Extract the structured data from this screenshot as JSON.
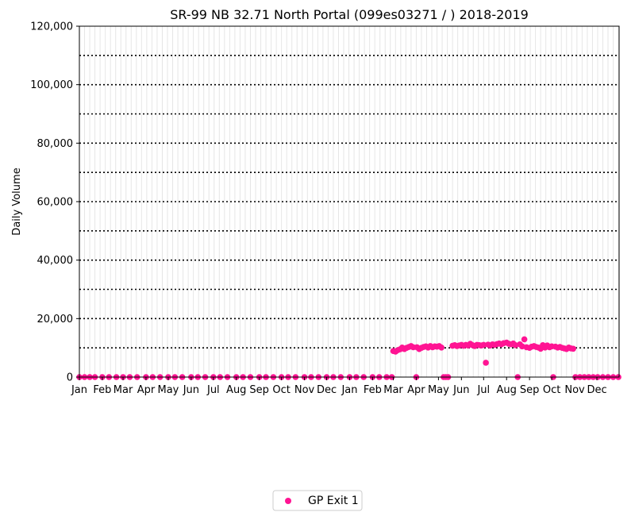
{
  "chart_data": {
    "type": "scatter",
    "title": "SR-99  NB  32.71  North Portal (099es03271 / ) 2018-2019",
    "xlabel": "",
    "ylabel": "Daily Volume",
    "x_range": [
      "2018-01-01",
      "2019-12-31"
    ],
    "ylim": [
      0,
      120000
    ],
    "y_ticks": [
      0,
      20000,
      40000,
      60000,
      80000,
      100000,
      120000
    ],
    "y_tick_labels": [
      "0",
      "20,000",
      "40,000",
      "60,000",
      "80,000",
      "100,000",
      "120,000"
    ],
    "x_ticks": [
      {
        "date": "2018-01-01",
        "label": "Jan"
      },
      {
        "date": "2018-02-01",
        "label": "Feb"
      },
      {
        "date": "2018-03-01",
        "label": "Mar"
      },
      {
        "date": "2018-04-01",
        "label": "Apr"
      },
      {
        "date": "2018-05-01",
        "label": "May"
      },
      {
        "date": "2018-06-01",
        "label": "Jun"
      },
      {
        "date": "2018-07-01",
        "label": "Jul"
      },
      {
        "date": "2018-08-01",
        "label": "Aug"
      },
      {
        "date": "2018-09-01",
        "label": "Sep"
      },
      {
        "date": "2018-10-01",
        "label": "Oct"
      },
      {
        "date": "2018-11-01",
        "label": "Nov"
      },
      {
        "date": "2018-12-01",
        "label": "Dec"
      },
      {
        "date": "2019-01-01",
        "label": "Jan"
      },
      {
        "date": "2019-02-01",
        "label": "Feb"
      },
      {
        "date": "2019-03-01",
        "label": "Mar"
      },
      {
        "date": "2019-04-01",
        "label": "Apr"
      },
      {
        "date": "2019-05-01",
        "label": "May"
      },
      {
        "date": "2019-06-01",
        "label": "Jun"
      },
      {
        "date": "2019-07-01",
        "label": "Jul"
      },
      {
        "date": "2019-08-01",
        "label": "Aug"
      },
      {
        "date": "2019-09-01",
        "label": "Sep"
      },
      {
        "date": "2019-10-01",
        "label": "Oct"
      },
      {
        "date": "2019-11-01",
        "label": "Nov"
      },
      {
        "date": "2019-12-01",
        "label": "Dec"
      }
    ],
    "grid": {
      "y_major": "dotted",
      "x_weekly": "light-gray"
    },
    "legend": {
      "position": "bottom-center",
      "entries": [
        "GP Exit 1"
      ]
    },
    "series": [
      {
        "name": "GP Exit 1",
        "color": "#ff1493",
        "points": [
          {
            "x": "2018-01-01",
            "y": 0
          },
          {
            "x": "2018-01-08",
            "y": 0
          },
          {
            "x": "2018-01-15",
            "y": 0
          },
          {
            "x": "2018-01-22",
            "y": 0
          },
          {
            "x": "2018-02-01",
            "y": 0
          },
          {
            "x": "2018-02-10",
            "y": 0
          },
          {
            "x": "2018-02-20",
            "y": 0
          },
          {
            "x": "2018-03-01",
            "y": 0
          },
          {
            "x": "2018-03-10",
            "y": 0
          },
          {
            "x": "2018-03-20",
            "y": 0
          },
          {
            "x": "2018-04-01",
            "y": 0
          },
          {
            "x": "2018-04-10",
            "y": 0
          },
          {
            "x": "2018-04-20",
            "y": 0
          },
          {
            "x": "2018-05-01",
            "y": 0
          },
          {
            "x": "2018-05-10",
            "y": 0
          },
          {
            "x": "2018-05-20",
            "y": 0
          },
          {
            "x": "2018-06-01",
            "y": 0
          },
          {
            "x": "2018-06-10",
            "y": 0
          },
          {
            "x": "2018-06-20",
            "y": 0
          },
          {
            "x": "2018-07-01",
            "y": 0
          },
          {
            "x": "2018-07-10",
            "y": 0
          },
          {
            "x": "2018-07-20",
            "y": 0
          },
          {
            "x": "2018-08-01",
            "y": 0
          },
          {
            "x": "2018-08-10",
            "y": 0
          },
          {
            "x": "2018-08-20",
            "y": 0
          },
          {
            "x": "2018-09-01",
            "y": 0
          },
          {
            "x": "2018-09-10",
            "y": 0
          },
          {
            "x": "2018-09-20",
            "y": 0
          },
          {
            "x": "2018-10-01",
            "y": 0
          },
          {
            "x": "2018-10-10",
            "y": 0
          },
          {
            "x": "2018-10-20",
            "y": 0
          },
          {
            "x": "2018-11-01",
            "y": 0
          },
          {
            "x": "2018-11-10",
            "y": 0
          },
          {
            "x": "2018-11-20",
            "y": 0
          },
          {
            "x": "2018-12-01",
            "y": 0
          },
          {
            "x": "2018-12-10",
            "y": 0
          },
          {
            "x": "2018-12-20",
            "y": 0
          },
          {
            "x": "2019-01-01",
            "y": 0
          },
          {
            "x": "2019-01-10",
            "y": 0
          },
          {
            "x": "2019-01-20",
            "y": 0
          },
          {
            "x": "2019-02-01",
            "y": 0
          },
          {
            "x": "2019-02-10",
            "y": 0
          },
          {
            "x": "2019-02-20",
            "y": 0
          },
          {
            "x": "2019-02-27",
            "y": 0
          },
          {
            "x": "2019-03-01",
            "y": 8900
          },
          {
            "x": "2019-03-04",
            "y": 8700
          },
          {
            "x": "2019-03-07",
            "y": 9200
          },
          {
            "x": "2019-03-10",
            "y": 9500
          },
          {
            "x": "2019-03-13",
            "y": 10100
          },
          {
            "x": "2019-03-16",
            "y": 9600
          },
          {
            "x": "2019-03-19",
            "y": 10000
          },
          {
            "x": "2019-03-22",
            "y": 10300
          },
          {
            "x": "2019-03-25",
            "y": 10600
          },
          {
            "x": "2019-03-28",
            "y": 10200
          },
          {
            "x": "2019-04-01",
            "y": 0
          },
          {
            "x": "2019-04-02",
            "y": 10200
          },
          {
            "x": "2019-04-05",
            "y": 9600
          },
          {
            "x": "2019-04-08",
            "y": 10000
          },
          {
            "x": "2019-04-11",
            "y": 10300
          },
          {
            "x": "2019-04-14",
            "y": 10500
          },
          {
            "x": "2019-04-17",
            "y": 10100
          },
          {
            "x": "2019-04-20",
            "y": 10600
          },
          {
            "x": "2019-04-23",
            "y": 10200
          },
          {
            "x": "2019-04-26",
            "y": 10500
          },
          {
            "x": "2019-04-29",
            "y": 10400
          },
          {
            "x": "2019-05-02",
            "y": 10600
          },
          {
            "x": "2019-05-05",
            "y": 10100
          },
          {
            "x": "2019-05-08",
            "y": 0
          },
          {
            "x": "2019-05-11",
            "y": 0
          },
          {
            "x": "2019-05-14",
            "y": 0
          },
          {
            "x": "2019-05-20",
            "y": 10700
          },
          {
            "x": "2019-05-23",
            "y": 10900
          },
          {
            "x": "2019-05-26",
            "y": 10600
          },
          {
            "x": "2019-05-29",
            "y": 10800
          },
          {
            "x": "2019-06-01",
            "y": 11000
          },
          {
            "x": "2019-06-04",
            "y": 10700
          },
          {
            "x": "2019-06-07",
            "y": 11000
          },
          {
            "x": "2019-06-10",
            "y": 10800
          },
          {
            "x": "2019-06-13",
            "y": 11400
          },
          {
            "x": "2019-06-16",
            "y": 10900
          },
          {
            "x": "2019-06-19",
            "y": 10600
          },
          {
            "x": "2019-06-22",
            "y": 11000
          },
          {
            "x": "2019-06-25",
            "y": 10900
          },
          {
            "x": "2019-06-28",
            "y": 10800
          },
          {
            "x": "2019-07-04",
            "y": 4900
          },
          {
            "x": "2019-07-01",
            "y": 11000
          },
          {
            "x": "2019-07-07",
            "y": 11100
          },
          {
            "x": "2019-07-10",
            "y": 10800
          },
          {
            "x": "2019-07-13",
            "y": 11200
          },
          {
            "x": "2019-07-16",
            "y": 11000
          },
          {
            "x": "2019-07-19",
            "y": 11300
          },
          {
            "x": "2019-07-22",
            "y": 11500
          },
          {
            "x": "2019-07-25",
            "y": 11200
          },
          {
            "x": "2019-07-28",
            "y": 11600
          },
          {
            "x": "2019-08-01",
            "y": 11800
          },
          {
            "x": "2019-08-04",
            "y": 11400
          },
          {
            "x": "2019-08-07",
            "y": 11200
          },
          {
            "x": "2019-08-10",
            "y": 11500
          },
          {
            "x": "2019-08-13",
            "y": 10900
          },
          {
            "x": "2019-08-16",
            "y": 0
          },
          {
            "x": "2019-08-19",
            "y": 11200
          },
          {
            "x": "2019-08-22",
            "y": 10500
          },
          {
            "x": "2019-08-25",
            "y": 12900
          },
          {
            "x": "2019-08-28",
            "y": 10200
          },
          {
            "x": "2019-09-01",
            "y": 10000
          },
          {
            "x": "2019-09-04",
            "y": 10400
          },
          {
            "x": "2019-09-07",
            "y": 10600
          },
          {
            "x": "2019-09-10",
            "y": 10300
          },
          {
            "x": "2019-09-13",
            "y": 10100
          },
          {
            "x": "2019-09-16",
            "y": 9700
          },
          {
            "x": "2019-09-19",
            "y": 10900
          },
          {
            "x": "2019-09-22",
            "y": 10100
          },
          {
            "x": "2019-09-25",
            "y": 10800
          },
          {
            "x": "2019-09-28",
            "y": 10200
          },
          {
            "x": "2019-10-01",
            "y": 10500
          },
          {
            "x": "2019-10-03",
            "y": 0
          },
          {
            "x": "2019-10-06",
            "y": 10400
          },
          {
            "x": "2019-10-09",
            "y": 10100
          },
          {
            "x": "2019-10-12",
            "y": 10300
          },
          {
            "x": "2019-10-15",
            "y": 10000
          },
          {
            "x": "2019-10-18",
            "y": 9800
          },
          {
            "x": "2019-10-21",
            "y": 9600
          },
          {
            "x": "2019-10-24",
            "y": 10100
          },
          {
            "x": "2019-10-27",
            "y": 9800
          },
          {
            "x": "2019-10-30",
            "y": 9700
          },
          {
            "x": "2019-11-02",
            "y": 0
          },
          {
            "x": "2019-11-08",
            "y": 0
          },
          {
            "x": "2019-11-14",
            "y": 0
          },
          {
            "x": "2019-11-20",
            "y": 0
          },
          {
            "x": "2019-11-26",
            "y": 0
          },
          {
            "x": "2019-12-02",
            "y": 0
          },
          {
            "x": "2019-12-09",
            "y": 0
          },
          {
            "x": "2019-12-16",
            "y": 0
          },
          {
            "x": "2019-12-23",
            "y": 0
          },
          {
            "x": "2019-12-30",
            "y": 0
          }
        ]
      }
    ]
  }
}
